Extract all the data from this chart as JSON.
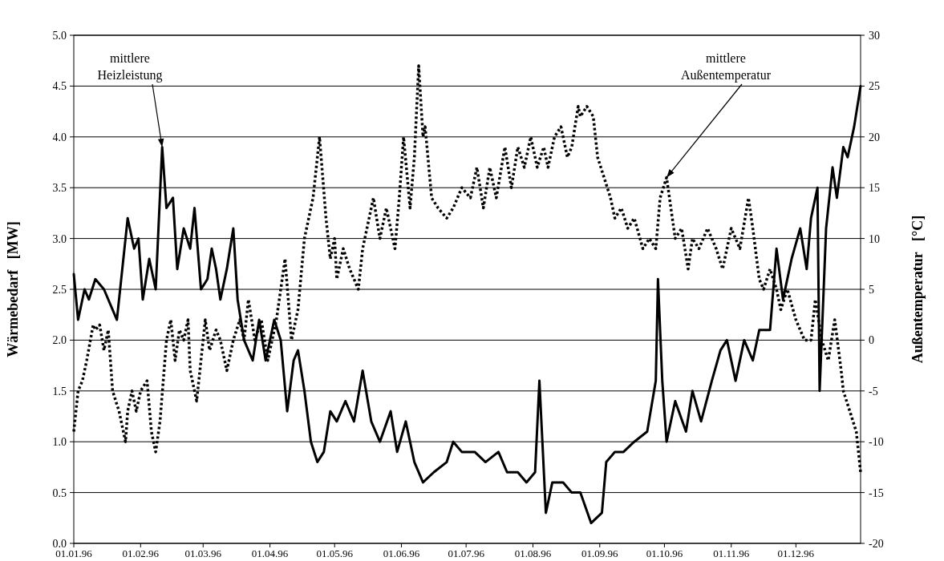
{
  "chart_data": {
    "type": "line",
    "ylabel": "Wärmebedarf   [MW]",
    "y2label": "Außentemperatur   [°C]",
    "xlim": [
      "1996-01-01",
      "1996-12-31"
    ],
    "xticks": [
      {
        "value": "1996-01-01",
        "label": "01.01.96"
      },
      {
        "value": "1996-02-01",
        "label": "01.02.96"
      },
      {
        "value": "1996-03-01",
        "label": "01.03.96"
      },
      {
        "value": "1996-04-01",
        "label": "01.04.96"
      },
      {
        "value": "1996-05-01",
        "label": "01.05.96"
      },
      {
        "value": "1996-06-01",
        "label": "01.06.96"
      },
      {
        "value": "1996-07-01",
        "label": "01.07.96"
      },
      {
        "value": "1996-08-01",
        "label": "01.08.96"
      },
      {
        "value": "1996-09-01",
        "label": "01.09.96"
      },
      {
        "value": "1996-10-01",
        "label": "01.10.96"
      },
      {
        "value": "1996-11-01",
        "label": "01.11.96"
      },
      {
        "value": "1996-12-01",
        "label": "01.12.96"
      }
    ],
    "ylim": [
      0,
      5
    ],
    "yticks": [
      {
        "value": 0,
        "label": "0.0"
      },
      0.5,
      {
        "value": 1,
        "label": "1.0"
      },
      1.5,
      {
        "value": 2,
        "label": "2.0"
      },
      2.5,
      {
        "value": 3,
        "label": "3.0"
      },
      3.5,
      {
        "value": 4,
        "label": "4.0"
      },
      4.5,
      {
        "value": 5,
        "label": "5.0"
      }
    ],
    "y2lim": [
      -20,
      30
    ],
    "y2ticks": [
      -20,
      -15,
      -10,
      -5,
      0,
      5,
      10,
      15,
      20,
      25,
      30
    ],
    "grid": "y",
    "marker": "none",
    "series": [
      {
        "color": "#000000",
        "line_style": "solid",
        "x": [
          "1996-01-01",
          "1996-01-03",
          "1996-01-06",
          "1996-01-08",
          "1996-01-11",
          "1996-01-15",
          "1996-01-21",
          "1996-01-26",
          "1996-01-29",
          "1996-01-31",
          "1996-02-02",
          "1996-02-05",
          "1996-02-08",
          "1996-02-11",
          "1996-02-13",
          "1996-02-16",
          "1996-02-18",
          "1996-02-21",
          "1996-02-24",
          "1996-02-26",
          "1996-02-29",
          "1996-03-03",
          "1996-03-05",
          "1996-03-07",
          "1996-03-09",
          "1996-03-12",
          "1996-03-15",
          "1996-03-17",
          "1996-03-20",
          "1996-03-24",
          "1996-03-27",
          "1996-03-30",
          "1996-04-03",
          "1996-04-06",
          "1996-04-09",
          "1996-04-12",
          "1996-04-14",
          "1996-04-17",
          "1996-04-20",
          "1996-04-23",
          "1996-04-26",
          "1996-04-29",
          "1996-05-02",
          "1996-05-06",
          "1996-05-10",
          "1996-05-14",
          "1996-05-18",
          "1996-05-22",
          "1996-05-27",
          "1996-05-30",
          "1996-06-03",
          "1996-06-07",
          "1996-06-11",
          "1996-06-16",
          "1996-06-22",
          "1996-06-25",
          "1996-06-29",
          "1996-07-05",
          "1996-07-10",
          "1996-07-16",
          "1996-07-20",
          "1996-07-25",
          "1996-07-29",
          "1996-08-02",
          "1996-08-04",
          "1996-08-07",
          "1996-08-10",
          "1996-08-15",
          "1996-08-19",
          "1996-08-23",
          "1996-08-28",
          "1996-09-02",
          "1996-09-04",
          "1996-09-08",
          "1996-09-12",
          "1996-09-17",
          "1996-09-23",
          "1996-09-27",
          "1996-09-28",
          "1996-09-30",
          "1996-10-02",
          "1996-10-06",
          "1996-10-11",
          "1996-10-14",
          "1996-10-18",
          "1996-10-23",
          "1996-10-27",
          "1996-10-30",
          "1996-11-03",
          "1996-11-07",
          "1996-11-11",
          "1996-11-14",
          "1996-11-19",
          "1996-11-22",
          "1996-11-25",
          "1996-11-29",
          "1996-12-03",
          "1996-12-06",
          "1996-12-08",
          "1996-12-11",
          "1996-12-12",
          "1996-12-15",
          "1996-12-18",
          "1996-12-20",
          "1996-12-23",
          "1996-12-25",
          "1996-12-28",
          "1996-12-31"
        ],
        "values": [
          2.65,
          2.2,
          2.5,
          2.4,
          2.6,
          2.5,
          2.2,
          3.2,
          2.9,
          3.0,
          2.4,
          2.8,
          2.5,
          3.9,
          3.3,
          3.4,
          2.7,
          3.1,
          2.9,
          3.3,
          2.5,
          2.6,
          2.9,
          2.7,
          2.4,
          2.7,
          3.1,
          2.4,
          2.0,
          1.8,
          2.2,
          1.8,
          2.2,
          2.0,
          1.3,
          1.8,
          1.9,
          1.5,
          1.0,
          0.8,
          0.9,
          1.3,
          1.2,
          1.4,
          1.2,
          1.7,
          1.2,
          1.0,
          1.3,
          0.9,
          1.2,
          0.8,
          0.6,
          0.7,
          0.8,
          1.0,
          0.9,
          0.9,
          0.8,
          0.9,
          0.7,
          0.7,
          0.6,
          0.7,
          1.6,
          0.3,
          0.6,
          0.6,
          0.5,
          0.5,
          0.2,
          0.3,
          0.8,
          0.9,
          0.9,
          1.0,
          1.1,
          1.6,
          2.6,
          1.6,
          1.0,
          1.4,
          1.1,
          1.5,
          1.2,
          1.6,
          1.9,
          2.0,
          1.6,
          2.0,
          1.8,
          2.1,
          2.1,
          2.9,
          2.4,
          2.8,
          3.1,
          2.7,
          3.2,
          3.5,
          1.5,
          3.1,
          3.7,
          3.4,
          3.9,
          3.8,
          4.1,
          4.5
        ]
      },
      {
        "color": "#000000",
        "line_style": "dotted",
        "axis": "y2",
        "x": [
          "1996-01-01",
          "1996-01-03",
          "1996-01-05",
          "1996-01-07",
          "1996-01-10",
          "1996-01-11",
          "1996-01-13",
          "1996-01-15",
          "1996-01-17",
          "1996-01-19",
          "1996-01-22",
          "1996-01-25",
          "1996-01-26",
          "1996-01-28",
          "1996-01-30",
          "1996-02-01",
          "1996-02-04",
          "1996-02-06",
          "1996-02-08",
          "1996-02-10",
          "1996-02-13",
          "1996-02-15",
          "1996-02-17",
          "1996-02-19",
          "1996-02-21",
          "1996-02-23",
          "1996-02-24",
          "1996-02-27",
          "1996-02-29",
          "1996-03-02",
          "1996-03-04",
          "1996-03-07",
          "1996-03-09",
          "1996-03-12",
          "1996-03-15",
          "1996-03-18",
          "1996-03-20",
          "1996-03-22",
          "1996-03-25",
          "1996-03-28",
          "1996-03-31",
          "1996-04-02",
          "1996-04-04",
          "1996-04-08",
          "1996-04-11",
          "1996-04-14",
          "1996-04-17",
          "1996-04-21",
          "1996-04-24",
          "1996-04-27",
          "1996-04-29",
          "1996-05-01",
          "1996-05-02",
          "1996-05-05",
          "1996-05-08",
          "1996-05-12",
          "1996-05-14",
          "1996-05-17",
          "1996-05-19",
          "1996-05-22",
          "1996-05-25",
          "1996-05-29",
          "1996-05-31",
          "1996-06-02",
          "1996-06-05",
          "1996-06-07",
          "1996-06-09",
          "1996-06-11",
          "1996-06-12",
          "1996-06-15",
          "1996-06-18",
          "1996-06-22",
          "1996-06-25",
          "1996-06-29",
          "1996-07-03",
          "1996-07-06",
          "1996-07-09",
          "1996-07-12",
          "1996-07-15",
          "1996-07-19",
          "1996-07-22",
          "1996-07-25",
          "1996-07-28",
          "1996-07-31",
          "1996-08-03",
          "1996-08-06",
          "1996-08-08",
          "1996-08-11",
          "1996-08-14",
          "1996-08-17",
          "1996-08-19",
          "1996-08-22",
          "1996-08-23",
          "1996-08-26",
          "1996-08-29",
          "1996-08-31",
          "1996-09-03",
          "1996-09-06",
          "1996-09-08",
          "1996-09-11",
          "1996-09-14",
          "1996-09-17",
          "1996-09-21",
          "1996-09-24",
          "1996-09-27",
          "1996-09-29",
          "1996-10-02",
          "1996-10-06",
          "1996-10-09",
          "1996-10-12",
          "1996-10-14",
          "1996-10-17",
          "1996-10-21",
          "1996-10-25",
          "1996-10-28",
          "1996-11-01",
          "1996-11-05",
          "1996-11-09",
          "1996-11-11",
          "1996-11-14",
          "1996-11-16",
          "1996-11-19",
          "1996-11-22",
          "1996-11-24",
          "1996-11-27",
          "1996-12-01",
          "1996-12-05",
          "1996-12-08",
          "1996-12-10",
          "1996-12-13",
          "1996-12-16",
          "1996-12-19",
          "1996-12-22",
          "1996-12-23",
          "1996-12-26",
          "1996-12-29",
          "1996-12-31"
        ],
        "values": [
          -9,
          -5,
          -4,
          -2,
          1.5,
          1,
          1.5,
          -1,
          1,
          -5,
          -7,
          -10,
          -7,
          -5,
          -7,
          -5,
          -4,
          -9,
          -11,
          -8,
          0,
          2,
          -2,
          1,
          0,
          2,
          -3,
          -6,
          -2,
          2,
          -1,
          1,
          0,
          -3,
          0,
          2,
          0,
          4,
          0,
          2,
          -2,
          0,
          2,
          8,
          0,
          3,
          10,
          14,
          20,
          12,
          8,
          10,
          6,
          9,
          7,
          5,
          9,
          12,
          14,
          10,
          13,
          9,
          14,
          20,
          13,
          18,
          27,
          20,
          21,
          14,
          13,
          12,
          13,
          15,
          14,
          17,
          13,
          17,
          14,
          19,
          15,
          19,
          17,
          20,
          17,
          19,
          17,
          20,
          21,
          18,
          19,
          23,
          22,
          23,
          22,
          18,
          16,
          14,
          12,
          13,
          11,
          12,
          9,
          10,
          9,
          14,
          16,
          10,
          11,
          7,
          10,
          9,
          11,
          9,
          7,
          11,
          9,
          14,
          11,
          6,
          5,
          7,
          5,
          3,
          5,
          2,
          0,
          0,
          4,
          0,
          -2,
          2,
          -3,
          -5,
          -7,
          -9,
          -13
        ]
      }
    ],
    "annotations": [
      {
        "text": "mittlere Heizleistung",
        "x": "1996-02-11",
        "y": 3.9
      },
      {
        "text": "mittlere Außentemperatur",
        "x": "1996-10-02",
        "y": 3.6
      }
    ]
  }
}
